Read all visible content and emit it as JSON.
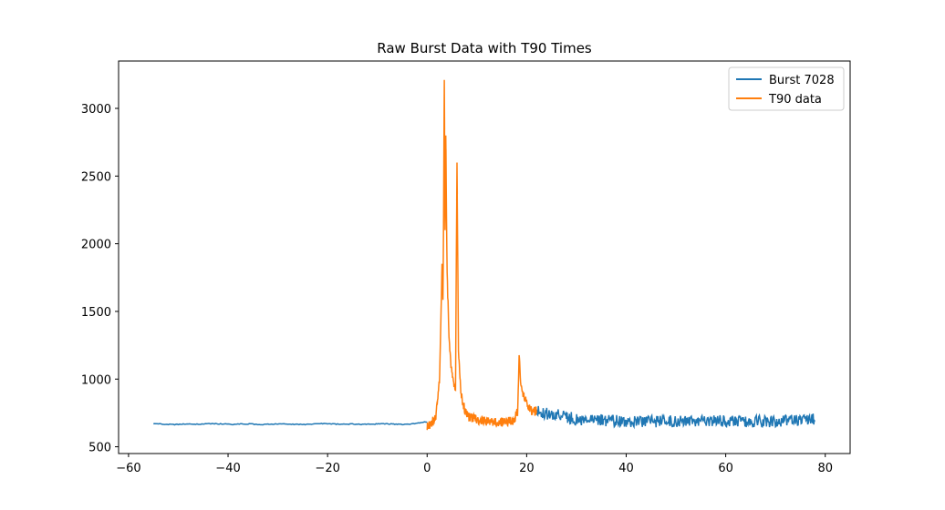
{
  "chart_data": {
    "type": "line",
    "title": "Raw Burst Data with T90 Times",
    "xlabel": "",
    "ylabel": "",
    "xlim": [
      -62,
      85
    ],
    "ylim": [
      450,
      3350
    ],
    "x_ticks": [
      -60,
      -40,
      -20,
      0,
      20,
      40,
      60,
      80
    ],
    "x_tick_labels": [
      "−60",
      "−40",
      "−20",
      "0",
      "20",
      "40",
      "60",
      "80"
    ],
    "y_ticks": [
      500,
      1000,
      1500,
      2000,
      2500,
      3000
    ],
    "y_tick_labels": [
      "500",
      "1000",
      "1500",
      "2000",
      "2500",
      "3000"
    ],
    "grid": false,
    "legend_position": "top-right",
    "series": [
      {
        "name": "Burst 7028",
        "color": "#1f77b4",
        "x_range": [
          -55,
          78
        ],
        "points": [
          [
            -55,
            672
          ],
          [
            -53,
            668
          ],
          [
            -51,
            664
          ],
          [
            -49,
            668
          ],
          [
            -47,
            666
          ],
          [
            -45,
            669
          ],
          [
            -43,
            671
          ],
          [
            -41,
            668
          ],
          [
            -39,
            665
          ],
          [
            -37,
            669
          ],
          [
            -35,
            667
          ],
          [
            -33,
            664
          ],
          [
            -31,
            668
          ],
          [
            -29,
            670
          ],
          [
            -27,
            667
          ],
          [
            -25,
            664
          ],
          [
            -23,
            668
          ],
          [
            -21,
            671
          ],
          [
            -19,
            669
          ],
          [
            -17,
            666
          ],
          [
            -15,
            668
          ],
          [
            -13,
            665
          ],
          [
            -11,
            667
          ],
          [
            -9,
            670
          ],
          [
            -7,
            668
          ],
          [
            -5,
            665
          ],
          [
            -3,
            669
          ],
          [
            -1,
            680
          ],
          [
            0,
            685
          ],
          [
            22,
            765
          ],
          [
            24,
            745
          ],
          [
            26,
            735
          ],
          [
            28,
            720
          ],
          [
            30,
            705
          ],
          [
            32,
            700
          ],
          [
            35,
            695
          ],
          [
            40,
            690
          ],
          [
            45,
            688
          ],
          [
            50,
            688
          ],
          [
            55,
            688
          ],
          [
            60,
            688
          ],
          [
            65,
            688
          ],
          [
            70,
            690
          ],
          [
            75,
            695
          ],
          [
            78,
            705
          ]
        ]
      },
      {
        "name": "T90 data",
        "color": "#ff7f0e",
        "x_range": [
          0,
          22
        ],
        "points": [
          [
            0,
            650
          ],
          [
            1,
            680
          ],
          [
            1.8,
            720
          ],
          [
            2.2,
            900
          ],
          [
            2.5,
            1000
          ],
          [
            2.8,
            1500
          ],
          [
            3.0,
            1880
          ],
          [
            3.2,
            1550
          ],
          [
            3.45,
            3210
          ],
          [
            3.6,
            2100
          ],
          [
            3.75,
            2800
          ],
          [
            4.0,
            1800
          ],
          [
            4.4,
            1300
          ],
          [
            4.8,
            1100
          ],
          [
            5.3,
            980
          ],
          [
            5.7,
            900
          ],
          [
            6.0,
            2600
          ],
          [
            6.3,
            1200
          ],
          [
            6.8,
            900
          ],
          [
            7.5,
            780
          ],
          [
            8.5,
            720
          ],
          [
            10,
            700
          ],
          [
            12,
            690
          ],
          [
            14,
            685
          ],
          [
            16,
            680
          ],
          [
            17.5,
            700
          ],
          [
            18.2,
            760
          ],
          [
            18.5,
            1200
          ],
          [
            18.8,
            950
          ],
          [
            19.5,
            870
          ],
          [
            20.3,
            800
          ],
          [
            21,
            760
          ],
          [
            22,
            765
          ]
        ]
      }
    ]
  }
}
